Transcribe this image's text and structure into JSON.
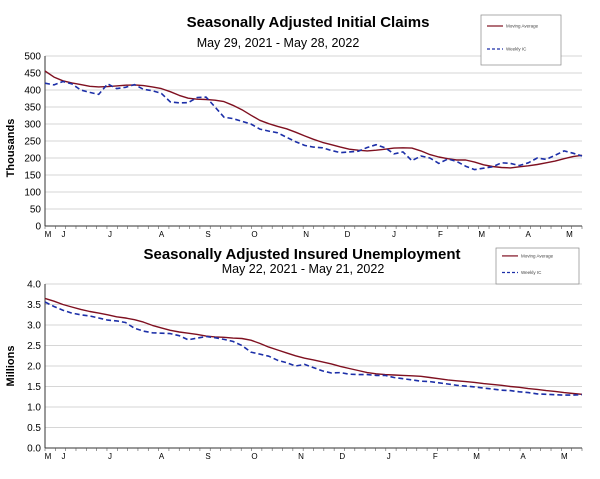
{
  "chart_data": [
    {
      "type": "line",
      "title": "Seasonally Adjusted Initial Claims",
      "subtitle": "May 29, 2021 - May 28, 2022",
      "ylabel": "Thousands",
      "xlabel": "",
      "ylim": [
        0,
        500
      ],
      "y_ticks": [
        "0",
        "50",
        "100",
        "150",
        "200",
        "250",
        "300",
        "350",
        "400",
        "450",
        "500"
      ],
      "y_tick_values": [
        0,
        50,
        100,
        150,
        200,
        250,
        300,
        350,
        400,
        450,
        500
      ],
      "x_range": [
        0,
        52
      ],
      "months": [
        {
          "label": "M",
          "x": 0
        },
        {
          "label": "J",
          "x": 1.5
        },
        {
          "label": "J",
          "x": 6
        },
        {
          "label": "A",
          "x": 11
        },
        {
          "label": "S",
          "x": 15.5
        },
        {
          "label": "O",
          "x": 20
        },
        {
          "label": "N",
          "x": 25
        },
        {
          "label": "D",
          "x": 29
        },
        {
          "label": "J",
          "x": 33.5
        },
        {
          "label": "F",
          "x": 38
        },
        {
          "label": "M",
          "x": 42
        },
        {
          "label": "A",
          "x": 46.5
        },
        {
          "label": "M",
          "x": 50.5
        }
      ],
      "legend": [
        "Moving Average",
        "Weekly IC"
      ],
      "legend_position": "top-right",
      "series": [
        {
          "name": "Moving Average",
          "color": "#7f1020",
          "dash": false,
          "values": [
            456,
            438,
            427,
            421,
            416,
            411,
            409,
            410,
            412,
            414,
            415,
            413,
            409,
            404,
            395,
            384,
            376,
            373,
            372,
            370,
            366,
            355,
            342,
            326,
            311,
            301,
            293,
            286,
            276,
            265,
            255,
            246,
            239,
            232,
            226,
            223,
            221,
            223,
            226,
            229,
            230,
            229,
            221,
            210,
            203,
            198,
            194,
            194,
            188,
            180,
            175,
            172,
            171,
            174,
            177,
            181,
            186,
            191,
            198,
            204,
            208
          ]
        },
        {
          "name": "Weekly IC",
          "color": "#1c2fa8",
          "dash": true,
          "values": [
            420,
            415,
            425,
            418,
            400,
            393,
            387,
            418,
            404,
            408,
            416,
            402,
            398,
            390,
            365,
            362,
            363,
            378,
            379,
            350,
            320,
            316,
            308,
            300,
            285,
            279,
            274,
            261,
            248,
            237,
            232,
            230,
            222,
            216,
            218,
            220,
            231,
            239,
            230,
            212,
            218,
            192,
            206,
            200,
            184,
            197,
            190,
            176,
            166,
            170,
            174,
            186,
            184,
            178,
            186,
            200,
            196,
            208,
            221,
            214,
            206
          ]
        }
      ]
    },
    {
      "type": "line",
      "title": "Seasonally Adjusted Insured Unemployment",
      "subtitle": "May 22, 2021 - May 21, 2022",
      "ylabel": "Millions",
      "xlabel": "",
      "ylim": [
        0,
        4.0
      ],
      "y_ticks": [
        "0.0",
        "0.5",
        "1.0",
        "1.5",
        "2.0",
        "2.5",
        "3.0",
        "3.5",
        "4.0"
      ],
      "y_tick_values": [
        0,
        0.5,
        1.0,
        1.5,
        2.0,
        2.5,
        3.0,
        3.5,
        4.0
      ],
      "x_range": [
        0,
        52
      ],
      "months": [
        {
          "label": "M",
          "x": 0
        },
        {
          "label": "J",
          "x": 1.5
        },
        {
          "label": "J",
          "x": 6
        },
        {
          "label": "A",
          "x": 11
        },
        {
          "label": "S",
          "x": 15.5
        },
        {
          "label": "O",
          "x": 20
        },
        {
          "label": "N",
          "x": 24.5
        },
        {
          "label": "D",
          "x": 28.5
        },
        {
          "label": "J",
          "x": 33
        },
        {
          "label": "F",
          "x": 37.5
        },
        {
          "label": "M",
          "x": 41.5
        },
        {
          "label": "A",
          "x": 46
        },
        {
          "label": "M",
          "x": 50
        }
      ],
      "legend": [
        "Moving Average",
        "Weekly IC"
      ],
      "legend_position": "top-right",
      "series": [
        {
          "name": "Moving Average",
          "color": "#7f1020",
          "dash": false,
          "values": [
            3.65,
            3.58,
            3.5,
            3.44,
            3.38,
            3.33,
            3.29,
            3.25,
            3.2,
            3.17,
            3.13,
            3.07,
            2.99,
            2.93,
            2.87,
            2.83,
            2.8,
            2.77,
            2.73,
            2.71,
            2.7,
            2.68,
            2.67,
            2.63,
            2.55,
            2.46,
            2.39,
            2.32,
            2.25,
            2.19,
            2.15,
            2.1,
            2.05,
            1.99,
            1.94,
            1.89,
            1.84,
            1.81,
            1.79,
            1.78,
            1.77,
            1.76,
            1.75,
            1.72,
            1.69,
            1.66,
            1.64,
            1.62,
            1.6,
            1.57,
            1.55,
            1.53,
            1.5,
            1.48,
            1.45,
            1.43,
            1.4,
            1.38,
            1.35,
            1.33,
            1.31
          ]
        },
        {
          "name": "Weekly IC",
          "color": "#1c2fa8",
          "dash": true,
          "values": [
            3.56,
            3.45,
            3.36,
            3.29,
            3.25,
            3.22,
            3.17,
            3.12,
            3.1,
            3.06,
            2.92,
            2.85,
            2.81,
            2.8,
            2.79,
            2.74,
            2.64,
            2.68,
            2.72,
            2.69,
            2.65,
            2.6,
            2.5,
            2.34,
            2.29,
            2.24,
            2.14,
            2.08,
            2.0,
            2.04,
            1.96,
            1.88,
            1.83,
            1.84,
            1.8,
            1.79,
            1.79,
            1.77,
            1.77,
            1.72,
            1.69,
            1.66,
            1.63,
            1.62,
            1.59,
            1.56,
            1.53,
            1.51,
            1.49,
            1.46,
            1.44,
            1.41,
            1.4,
            1.37,
            1.35,
            1.32,
            1.31,
            1.3,
            1.29,
            1.29,
            1.3
          ]
        }
      ]
    }
  ]
}
